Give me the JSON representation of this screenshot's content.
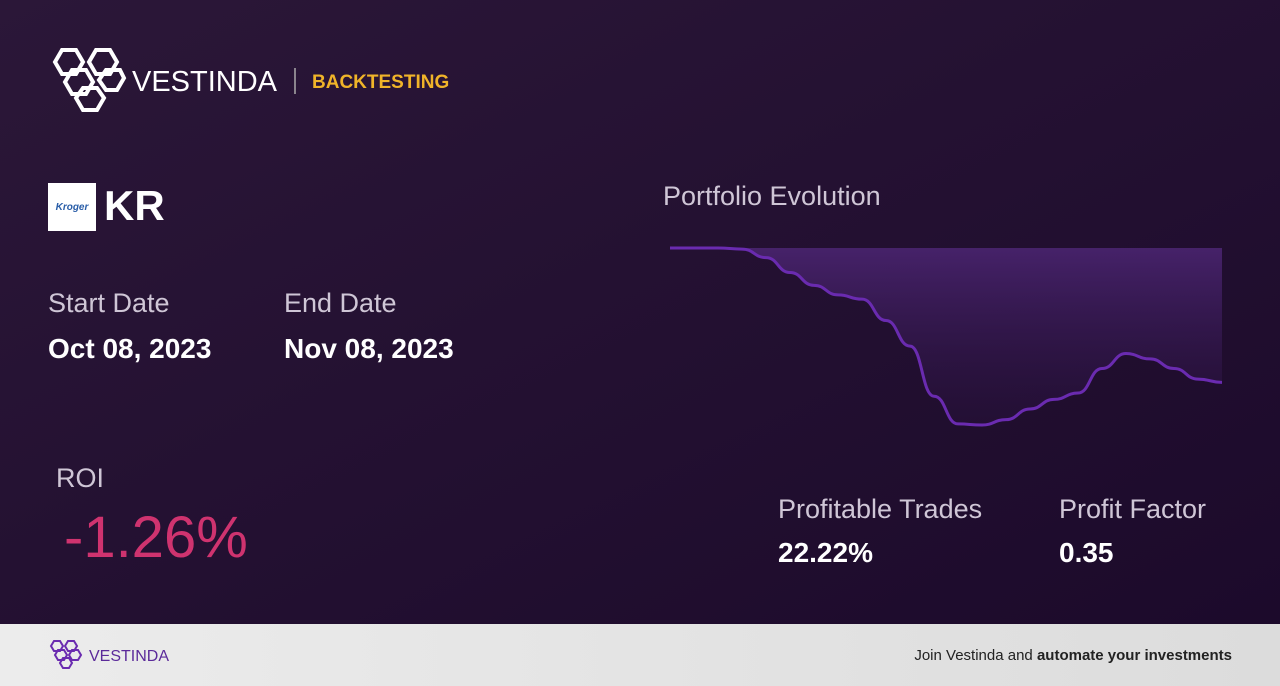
{
  "header": {
    "brand": "VESTINDA",
    "section": "BACKTESTING"
  },
  "ticker": {
    "logo_text": "Kroger",
    "symbol": "KR"
  },
  "dates": {
    "start_label": "Start Date",
    "start_value": "Oct 08, 2023",
    "end_label": "End Date",
    "end_value": "Nov 08, 2023"
  },
  "roi": {
    "label": "ROI",
    "value": "-1.26%"
  },
  "chart_data": {
    "type": "line",
    "title": "Portfolio Evolution",
    "color": "#6a2bb0",
    "values": [
      0,
      0,
      0,
      -0.01,
      -0.09,
      -0.23,
      -0.35,
      -0.44,
      -0.48,
      -0.68,
      -0.92,
      -1.39,
      -1.65,
      -1.66,
      -1.61,
      -1.51,
      -1.42,
      -1.36,
      -1.13,
      -0.99,
      -1.04,
      -1.13,
      -1.23,
      -1.26
    ]
  },
  "stats": {
    "profitable_label": "Profitable Trades",
    "profitable_value": "22.22%",
    "factor_label": "Profit Factor",
    "factor_value": "0.35"
  },
  "footer": {
    "brand": "VESTINDA",
    "text_plain": "Join Vestinda and",
    "text_bold": "automate your investments"
  }
}
